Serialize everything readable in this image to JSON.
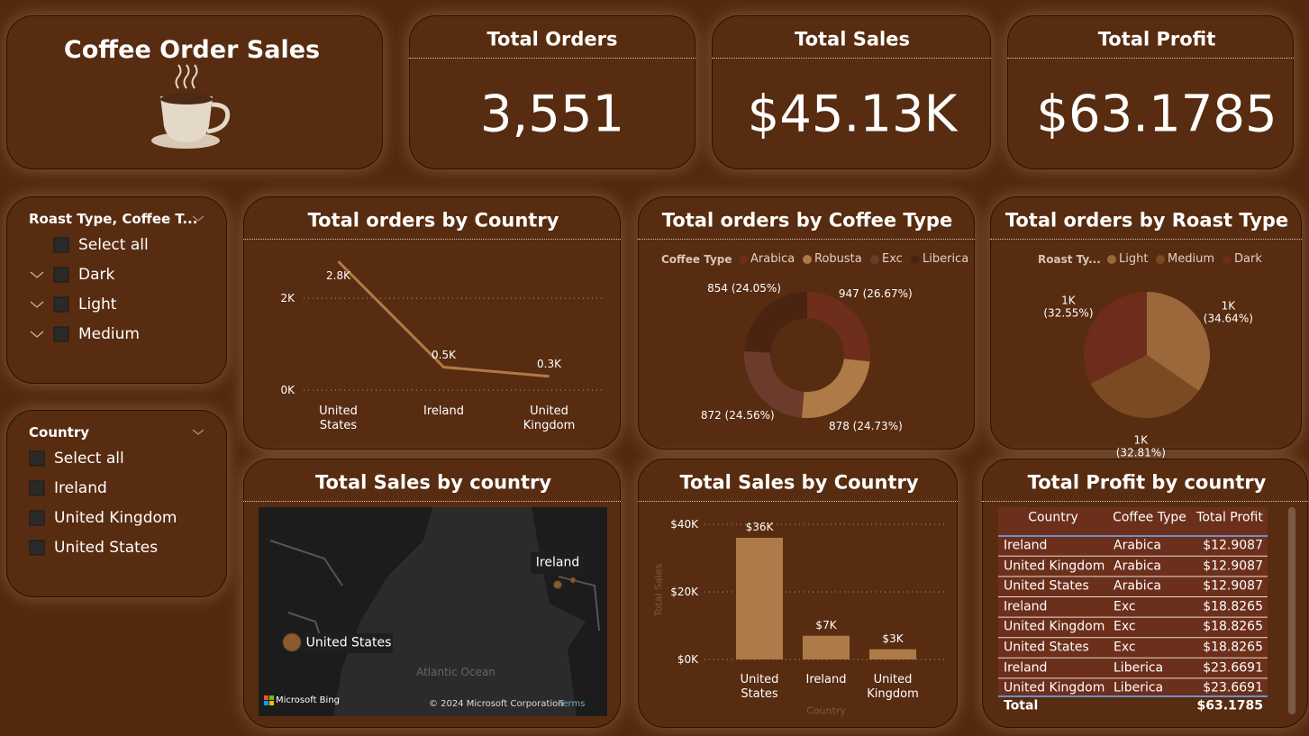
{
  "header": {
    "title": "Coffee Order Sales"
  },
  "kpis": [
    {
      "title": "Total Orders",
      "value": "3,551"
    },
    {
      "title": "Total Sales",
      "value": "$45.13K"
    },
    {
      "title": "Total Profit",
      "value": "$63.1785"
    }
  ],
  "slicers": [
    {
      "title": "Roast Type, Coffee T...",
      "items": [
        "Select all",
        "Dark",
        "Light",
        "Medium"
      ]
    },
    {
      "title": "Country",
      "items": [
        "Select all",
        "Ireland",
        "United Kingdom",
        "United States"
      ]
    }
  ],
  "orders_by_country": {
    "type": "line",
    "title": "Total orders by Country",
    "categories": [
      "United States",
      "Ireland",
      "United Kingdom"
    ],
    "values": [
      2800,
      500,
      300
    ],
    "value_labels": [
      "2.8K",
      "0.5K",
      "0.3K"
    ],
    "color": "#b07a45",
    "ylim": [
      0,
      3000
    ],
    "yticks": [
      {
        "value": 0,
        "label": "0K"
      },
      {
        "value": 2000,
        "label": "2K"
      }
    ],
    "grid": true
  },
  "orders_by_coffee_type": {
    "type": "donut",
    "title": "Total orders by Coffee Type",
    "legend_title": "Coffee Type",
    "categories": [
      "Arabica",
      "Robusta",
      "Exc",
      "Liberica"
    ],
    "values": [
      947,
      878,
      872,
      854
    ],
    "value_labels": [
      "947 (26.67%)",
      "878 (24.73%)",
      "872 (24.56%)",
      "854 (24.05%)"
    ],
    "colors": [
      "#6e2e1c",
      "#ad7a48",
      "#6b3b2b",
      "#4a2410"
    ]
  },
  "orders_by_roast_type": {
    "type": "pie",
    "title": "Total orders by Roast Type",
    "legend_title": "Roast Ty...",
    "categories": [
      "Light",
      "Medium",
      "Dark"
    ],
    "values": [
      1230,
      1165,
      1156
    ],
    "value_labels": [
      "1K (34.64%)",
      "1K (32.81%)",
      "1K (32.55%)"
    ],
    "colors": [
      "#9a683a",
      "#7a4a22",
      "#6e2c1a"
    ]
  },
  "sales_map": {
    "title": "Total Sales by country",
    "labels": [
      "Ireland",
      "United States"
    ],
    "ocean_label": "Atlantic Ocean",
    "brand": "Microsoft Bing",
    "copyright": "© 2024 Microsoft Corporation",
    "terms": "Terms"
  },
  "sales_by_country": {
    "type": "bar",
    "title": "Total Sales by Country",
    "x_label": "Country",
    "y_label": "Total Sales",
    "categories": [
      "United States",
      "Ireland",
      "United Kingdom"
    ],
    "values": [
      36000,
      7000,
      3000
    ],
    "value_labels": [
      "$36K",
      "$7K",
      "$3K"
    ],
    "color": "#ad7b49",
    "ylim": [
      0,
      42000
    ],
    "yticks": [
      {
        "value": 0,
        "label": "$0K"
      },
      {
        "value": 20000,
        "label": "$20K"
      },
      {
        "value": 40000,
        "label": "$40K"
      }
    ],
    "grid": true
  },
  "profit_table": {
    "title": "Total Profit by country",
    "columns": [
      "Country",
      "Coffee Type",
      "Total Profit"
    ],
    "rows": [
      [
        "Ireland",
        "Arabica",
        "$12.9087"
      ],
      [
        "United Kingdom",
        "Arabica",
        "$12.9087"
      ],
      [
        "United States",
        "Arabica",
        "$12.9087"
      ],
      [
        "Ireland",
        "Exc",
        "$18.8265"
      ],
      [
        "United Kingdom",
        "Exc",
        "$18.8265"
      ],
      [
        "United States",
        "Exc",
        "$18.8265"
      ],
      [
        "Ireland",
        "Liberica",
        "$23.6691"
      ],
      [
        "United Kingdom",
        "Liberica",
        "$23.6691"
      ]
    ],
    "total": {
      "label": "Total",
      "value": "$63.1785"
    }
  }
}
